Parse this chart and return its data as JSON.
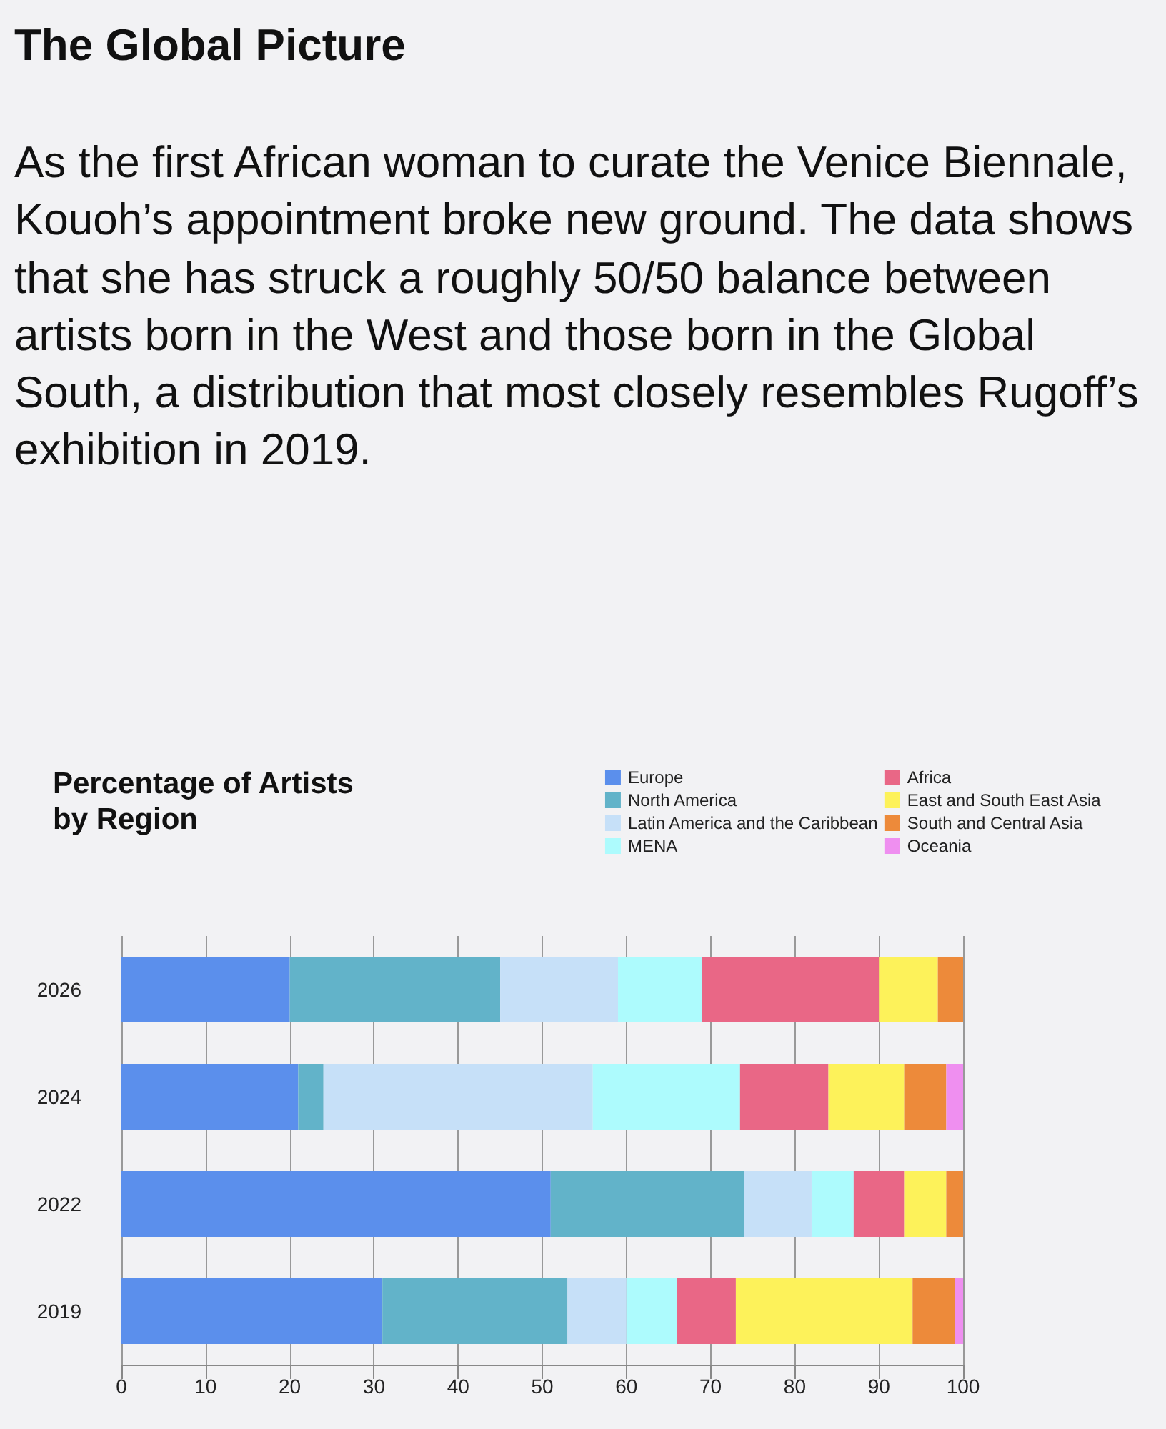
{
  "chart_data": {
    "type": "bar",
    "orientation": "horizontal",
    "stacked": true,
    "title": "The Global Picture",
    "subtitle": "As the first African woman to curate the Venice Biennale, Kouoh’s appointment broke new ground. The data shows that she has struck a roughly 50/50 balance between artists born in the West and those born in the Global South, a distribution that most closely resembles Rugoff’s exhibition in 2019.",
    "annotations": [
      "Percentage of Artists by Region"
    ],
    "categories": [
      "2026",
      "2024",
      "2022",
      "2019"
    ],
    "series": [
      {
        "name": "Europe",
        "color": "#5b8fec",
        "values": [
          20,
          21,
          51,
          31
        ]
      },
      {
        "name": "North America",
        "color": "#62b3c9",
        "values": [
          25,
          3,
          23,
          22
        ]
      },
      {
        "name": "Latin America and the Caribbean",
        "color": "#c6e0f8",
        "values": [
          14,
          32,
          8,
          7
        ]
      },
      {
        "name": "MENA",
        "color": "#adfbfd",
        "values": [
          10,
          17.5,
          5,
          6
        ]
      },
      {
        "name": "Africa",
        "color": "#e96786",
        "values": [
          21,
          10.5,
          6,
          7
        ]
      },
      {
        "name": "East and South East Asia",
        "color": "#fdf25a",
        "values": [
          7,
          9,
          5,
          21
        ]
      },
      {
        "name": "South and Central Asia",
        "color": "#ed8a3a",
        "values": [
          3,
          5,
          2,
          5
        ]
      },
      {
        "name": "Oceania",
        "color": "#ef8ff0",
        "values": [
          0,
          2,
          0,
          1
        ]
      }
    ],
    "xlim": [
      0,
      100
    ],
    "xticks": [
      0,
      10,
      20,
      30,
      40,
      50,
      60,
      70,
      80,
      90,
      100
    ],
    "grid": "x",
    "legend": "top right"
  }
}
